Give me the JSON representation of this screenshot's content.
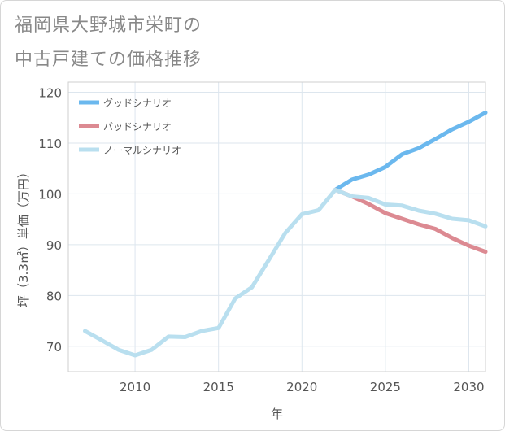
{
  "title_lines": [
    "福岡県大野城市栄町の",
    "中古戸建ての価格推移"
  ],
  "chart_data": {
    "type": "line",
    "title": "福岡県大野城市栄町の中古戸建ての価格推移",
    "xlabel": "年",
    "ylabel": "坪（3.3㎡）単価（万円）",
    "xlim": [
      2006,
      2031
    ],
    "ylim": [
      65,
      122
    ],
    "xticks": [
      2010,
      2015,
      2020,
      2025,
      2030
    ],
    "yticks": [
      70,
      80,
      90,
      100,
      110,
      120
    ],
    "grid": true,
    "legend_position": "top-left",
    "series": [
      {
        "name": "グッドシナリオ",
        "color": "#6bb8ee",
        "x": [
          2022,
          2023,
          2024,
          2025,
          2026,
          2027,
          2028,
          2029,
          2030,
          2031
        ],
        "y": [
          100.8,
          102.8,
          103.8,
          105.3,
          107.8,
          109.0,
          110.8,
          112.7,
          114.2,
          116.0
        ]
      },
      {
        "name": "バッドシナリオ",
        "color": "#dc8a92",
        "x": [
          2022,
          2023,
          2024,
          2025,
          2026,
          2027,
          2028,
          2029,
          2030,
          2031
        ],
        "y": [
          100.8,
          99.5,
          98.0,
          96.2,
          95.1,
          94.0,
          93.1,
          91.3,
          89.8,
          88.6
        ]
      },
      {
        "name": "ノーマルシナリオ",
        "color": "#b9dfef",
        "x": [
          2007,
          2008,
          2009,
          2010,
          2011,
          2012,
          2013,
          2014,
          2015,
          2016,
          2017,
          2018,
          2019,
          2020,
          2021,
          2022,
          2023,
          2024,
          2025,
          2026,
          2027,
          2028,
          2029,
          2030,
          2031
        ],
        "y": [
          73.0,
          71.2,
          69.3,
          68.2,
          69.3,
          71.9,
          71.8,
          73.0,
          73.6,
          79.4,
          81.6,
          86.9,
          92.3,
          96.0,
          96.8,
          100.8,
          99.5,
          99.2,
          97.9,
          97.7,
          96.7,
          96.1,
          95.1,
          94.8,
          93.6
        ]
      }
    ]
  }
}
